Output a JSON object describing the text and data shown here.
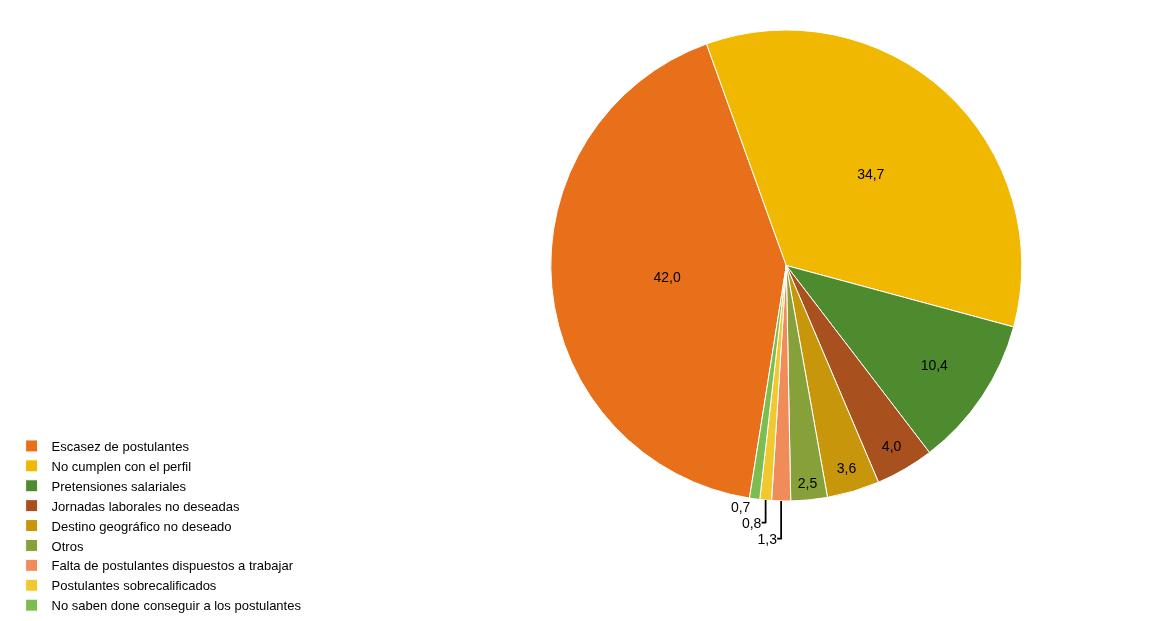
{
  "chart_data": {
    "type": "pie",
    "categories": [
      "Escasez de postulantes",
      "No cumplen con el perfil",
      "Pretensiones salariales",
      "Jornadas laborales no deseadas",
      "Destino geográfico no deseado",
      "Otros",
      "Falta de postulantes dispuestos a trabajar",
      "Postulantes sobrecalificados",
      "No saben done conseguir a los postulantes"
    ],
    "values": [
      42.0,
      34.7,
      10.4,
      4.0,
      3.6,
      2.5,
      1.3,
      0.8,
      0.7
    ],
    "value_labels": [
      "42,0",
      "34,7",
      "10,4",
      "4,0",
      "3,6",
      "2,5",
      "1,3",
      "0,8",
      "0,7"
    ],
    "colors": [
      "#e8701a",
      "#f0b800",
      "#4e8a2e",
      "#a8501e",
      "#c8960a",
      "#86a03a",
      "#f08c5a",
      "#f0c830",
      "#7cbc50"
    ],
    "legend": "bottom"
  }
}
